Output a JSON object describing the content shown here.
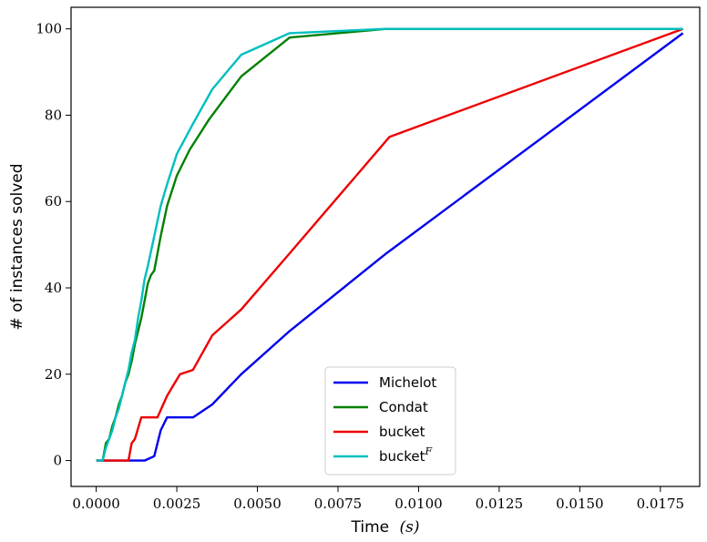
{
  "chart_data": {
    "type": "line",
    "xlabel": "Time",
    "xlabel_unit": "(s)",
    "ylabel": "# of instances solved",
    "xlim": [
      -0.00078,
      0.01872
    ],
    "ylim": [
      -6,
      105
    ],
    "xticks": [
      0.0,
      0.0025,
      0.005,
      0.0075,
      0.01,
      0.0125,
      0.015,
      0.0175
    ],
    "xtick_labels": [
      "0.0000",
      "0.0025",
      "0.0050",
      "0.0075",
      "0.0100",
      "0.0125",
      "0.0150",
      "0.0175"
    ],
    "yticks": [
      0,
      20,
      40,
      60,
      80,
      100
    ],
    "ytick_labels": [
      "0",
      "20",
      "40",
      "60",
      "80",
      "100"
    ],
    "grid": false,
    "legend_position": "bottom-center",
    "series": [
      {
        "name": "Michelot",
        "color": "#0000ee",
        "x": [
          0.0,
          0.0015,
          0.0018,
          0.002,
          0.0022,
          0.003,
          0.0036,
          0.0045,
          0.006,
          0.009,
          0.0182
        ],
        "y": [
          0,
          0,
          1,
          7,
          10,
          10,
          13,
          20,
          30,
          48,
          99
        ]
      },
      {
        "name": "Condat",
        "color": "#008000",
        "x": [
          0.0,
          0.0002,
          0.0003,
          0.0004,
          0.0005,
          0.0006,
          0.0007,
          0.0008,
          0.0009,
          0.001,
          0.0011,
          0.0012,
          0.0013,
          0.0014,
          0.0015,
          0.0016,
          0.0017,
          0.0018,
          0.002,
          0.0022,
          0.0025,
          0.0029,
          0.0035,
          0.0045,
          0.006,
          0.009,
          0.0182
        ],
        "y": [
          0,
          0,
          4,
          5,
          8,
          10,
          13,
          15,
          18,
          20,
          23,
          27,
          30,
          33,
          37,
          41,
          43,
          44,
          52,
          59,
          66,
          72,
          79,
          89,
          98,
          100,
          100
        ]
      },
      {
        "name": "bucket",
        "color": "#ee0000",
        "x": [
          0.0,
          0.001,
          0.0011,
          0.0012,
          0.0014,
          0.0019,
          0.0022,
          0.0026,
          0.003,
          0.0036,
          0.0045,
          0.006,
          0.0091,
          0.0182
        ],
        "y": [
          0,
          0,
          4,
          5,
          10,
          10,
          15,
          20,
          21,
          29,
          35,
          48,
          75,
          100
        ]
      },
      {
        "name": "bucket",
        "name_superscript": "F",
        "color": "#00bfbf",
        "x": [
          0.0,
          0.0002,
          0.0003,
          0.0004,
          0.0005,
          0.0006,
          0.0007,
          0.0008,
          0.0009,
          0.001,
          0.0011,
          0.0012,
          0.0013,
          0.0014,
          0.0015,
          0.0016,
          0.0018,
          0.002,
          0.0022,
          0.0025,
          0.003,
          0.0036,
          0.0045,
          0.006,
          0.009,
          0.0182
        ],
        "y": [
          0,
          0,
          3,
          5,
          7,
          10,
          12,
          15,
          18,
          21,
          25,
          28,
          33,
          37,
          42,
          45,
          52,
          59,
          64,
          71,
          78,
          86,
          94,
          99,
          100,
          100
        ]
      }
    ]
  }
}
